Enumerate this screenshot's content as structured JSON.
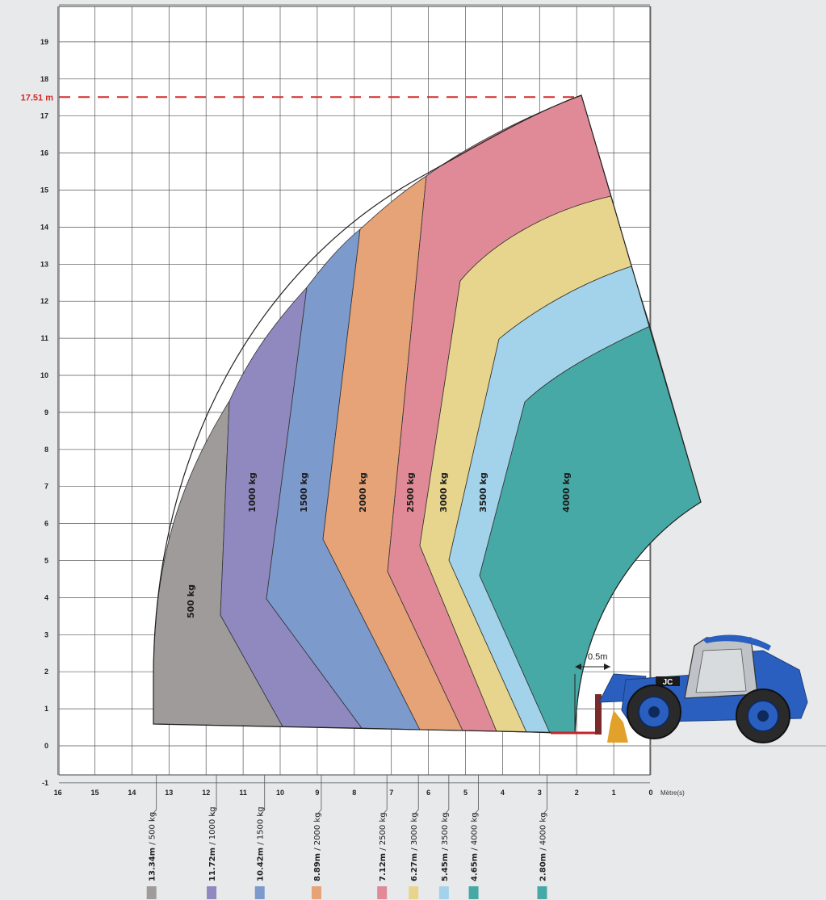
{
  "chart_data": {
    "type": "area",
    "title": "",
    "xlabel": "Mètre(s)",
    "ylabel": "",
    "x_reversed": true,
    "xlim": [
      16,
      0
    ],
    "ylim": [
      -1,
      20
    ],
    "x_ticks": [
      "16",
      "15",
      "14",
      "13",
      "12",
      "11",
      "10",
      "9",
      "8",
      "7",
      "6",
      "5",
      "4",
      "3",
      "2",
      "1",
      "0"
    ],
    "y_ticks": [
      "-1",
      "0",
      "1",
      "2",
      "3",
      "4",
      "5",
      "6",
      "7",
      "8",
      "9",
      "10",
      "11",
      "12",
      "13",
      "14",
      "15",
      "16",
      "17",
      "18",
      "19"
    ],
    "grid": true,
    "max_height": {
      "label": "17.51 m",
      "value": 17.51
    },
    "boom_offset_label": "0.5m",
    "zones": [
      {
        "label": "500 kg",
        "color": "#a09b9b",
        "boundary": [
          [
            13.34,
            0.6
          ],
          [
            13.34,
            2.2
          ],
          [
            13.1,
            4.0
          ],
          [
            12.7,
            6.0
          ],
          [
            12.1,
            8.0
          ],
          [
            11.6,
            9.3
          ]
        ]
      },
      {
        "label": "1000 kg",
        "color": "#9089c0",
        "boundary": [
          [
            11.6,
            9.3
          ],
          [
            11.6,
            3.6
          ],
          [
            11.0,
            2.2
          ],
          [
            10.0,
            0.6
          ]
        ]
      },
      {
        "label": "1500 kg",
        "color": "#7c9acb",
        "boundary": [
          [
            9.6,
            12.45
          ],
          [
            10.4,
            4.0
          ],
          [
            9.1,
            2.5
          ],
          [
            8.0,
            0.52
          ]
        ]
      },
      {
        "label": "2000 kg",
        "color": "#e5a377",
        "boundary": [
          [
            7.9,
            13.95
          ],
          [
            8.9,
            5.6
          ],
          [
            7.6,
            3.1
          ],
          [
            6.3,
            0.46
          ]
        ]
      },
      {
        "label": "2500 kg",
        "color": "#df8a96",
        "boundary": [
          [
            6.1,
            15.35
          ],
          [
            7.1,
            4.8
          ],
          [
            5.8,
            2.0
          ],
          [
            5.3,
            0.44
          ]
        ]
      },
      {
        "label": "3000 kg",
        "color": "#e7d58e",
        "boundary": [
          [
            1.0,
            14.9
          ],
          [
            5.2,
            12.6
          ],
          [
            6.3,
            5.4
          ],
          [
            5.0,
            2.0
          ],
          [
            4.3,
            0.42
          ]
        ]
      },
      {
        "label": "3500 kg",
        "color": "#a3d3ea",
        "boundary": [
          [
            0.5,
            13.0
          ],
          [
            4.2,
            11.0
          ],
          [
            5.5,
            5.0
          ],
          [
            4.4,
            2.0
          ],
          [
            3.4,
            0.4
          ]
        ]
      },
      {
        "label": "4000 kg",
        "color": "#46a9a5",
        "boundary": [
          [
            0.0,
            11.4
          ],
          [
            3.3,
            9.3
          ],
          [
            4.6,
            4.7
          ],
          [
            3.9,
            2.0
          ],
          [
            2.8,
            0.4
          ]
        ]
      }
    ],
    "reach_markers": [
      {
        "distance": "13.34m",
        "load": "500 kg",
        "x": 13.34,
        "color": "#a09b9b"
      },
      {
        "distance": "11.72m",
        "load": "1000 kg",
        "x": 11.72,
        "color": "#9089c0"
      },
      {
        "distance": "10.42m",
        "load": "1500 kg",
        "x": 10.42,
        "color": "#7c9acb"
      },
      {
        "distance": "8.89m",
        "load": "2000 kg",
        "x": 8.89,
        "color": "#e5a377"
      },
      {
        "distance": "7.12m",
        "load": "2500 kg",
        "x": 7.12,
        "color": "#df8a96"
      },
      {
        "distance": "6.27m",
        "load": "3000 kg",
        "x": 6.27,
        "color": "#e7d58e"
      },
      {
        "distance": "5.45m",
        "load": "3500 kg",
        "x": 5.45,
        "color": "#a3d3ea"
      },
      {
        "distance": "4.65m",
        "load": "4000 kg",
        "x": 4.65,
        "color": "#46a9a5"
      },
      {
        "distance": "2.80m",
        "load": "4000 kg",
        "x": 2.8,
        "color": "#46a9a5"
      }
    ]
  },
  "machine": {
    "name": "telehandler",
    "brand_badge": "JC",
    "body_color": "#2a5fbf"
  }
}
